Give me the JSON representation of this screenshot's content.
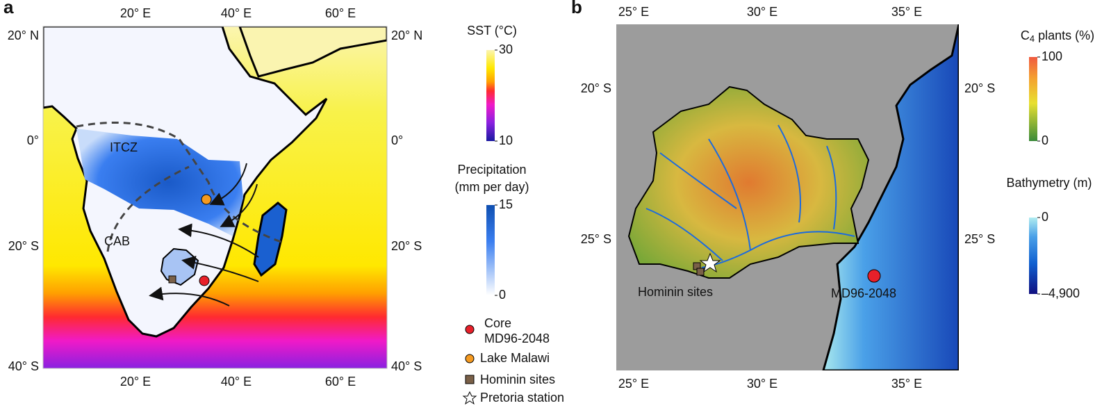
{
  "panel_a": {
    "label": "a",
    "lon_top": [
      "20° E",
      "40° E",
      "60° E"
    ],
    "lon_bottom": [
      "20° E",
      "40° E",
      "60° E"
    ],
    "lat_left": [
      "20° N",
      "0°",
      "20° S",
      "40° S"
    ],
    "lat_right": [
      "20° N",
      "0°",
      "20° S",
      "40° S"
    ],
    "annotations": [
      "ITCZ",
      "CAB"
    ]
  },
  "sst_bar": {
    "title": "SST (°C)",
    "lim": [
      10,
      30
    ],
    "ticks": [
      30,
      10
    ]
  },
  "precip_bar": {
    "title": [
      "Precipitation",
      "(mm per day)"
    ],
    "lim": [
      0,
      15
    ],
    "ticks": [
      15,
      0
    ]
  },
  "legend": [
    {
      "lines": [
        "Core",
        "MD96-2048"
      ]
    },
    {
      "lines": [
        "Lake Malawi"
      ]
    },
    {
      "lines": [
        "Hominin sites"
      ]
    },
    {
      "lines": [
        "Pretoria station"
      ]
    }
  ],
  "panel_b": {
    "label": "b",
    "lon_top": [
      "25° E",
      "30° E",
      "35° E"
    ],
    "lon_bottom": [
      "25° E",
      "30° E",
      "35° E"
    ],
    "lat_left": [
      "20° S",
      "25° S"
    ],
    "lat_right": [
      "20° S",
      "25° S"
    ],
    "annotations": [
      "Hominin sites",
      "MD96-2048"
    ]
  },
  "c4_bar": {
    "title": [
      "C",
      "4",
      " plants (%)"
    ],
    "lim": [
      0,
      100
    ],
    "ticks": [
      100,
      0
    ]
  },
  "bathy_bar": {
    "title": "Bathymetry (m)",
    "lim": [
      -4900,
      0
    ],
    "ticks": [
      0,
      {
        "value": -4900,
        "label": "–4,900"
      }
    ]
  }
}
